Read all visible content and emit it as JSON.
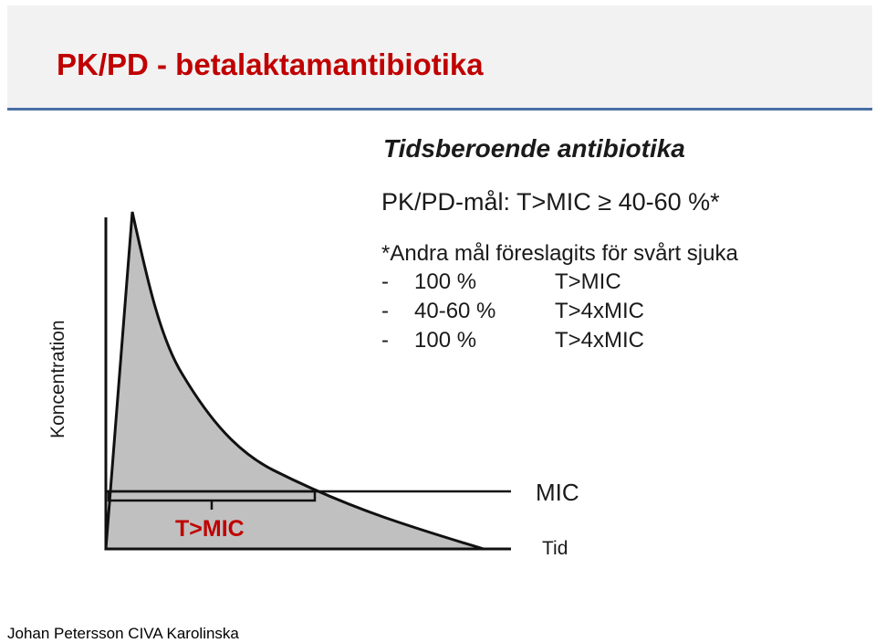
{
  "slide": {
    "title": "PK/PD - betalaktamantibiotika",
    "subtitle": "Tidsberoende antibiotika",
    "goal": "PK/PD-mål: T>MIC ≥ 40-60 %*",
    "note": "*Andra mål föreslagits för svårt sjuka",
    "alternatives": [
      {
        "dash": "-",
        "percent": "100 %",
        "target": "T>MIC"
      },
      {
        "dash": "-",
        "percent": "40-60 %",
        "target": "T>4xMIC"
      },
      {
        "dash": "-",
        "percent": "100 %",
        "target": "T>4xMIC"
      }
    ],
    "footer": "Johan Petersson CIVA Karolinska"
  },
  "diagram": {
    "y_axis_label": "Koncentration",
    "x_axis_label": "Tid",
    "mic_label": "MIC",
    "t_mic_label": "T>MIC",
    "colors": {
      "title": "#c00000",
      "area_fill": "#c0c0c0",
      "line": "#111111",
      "accent_rule": "#4a6fa5"
    }
  }
}
